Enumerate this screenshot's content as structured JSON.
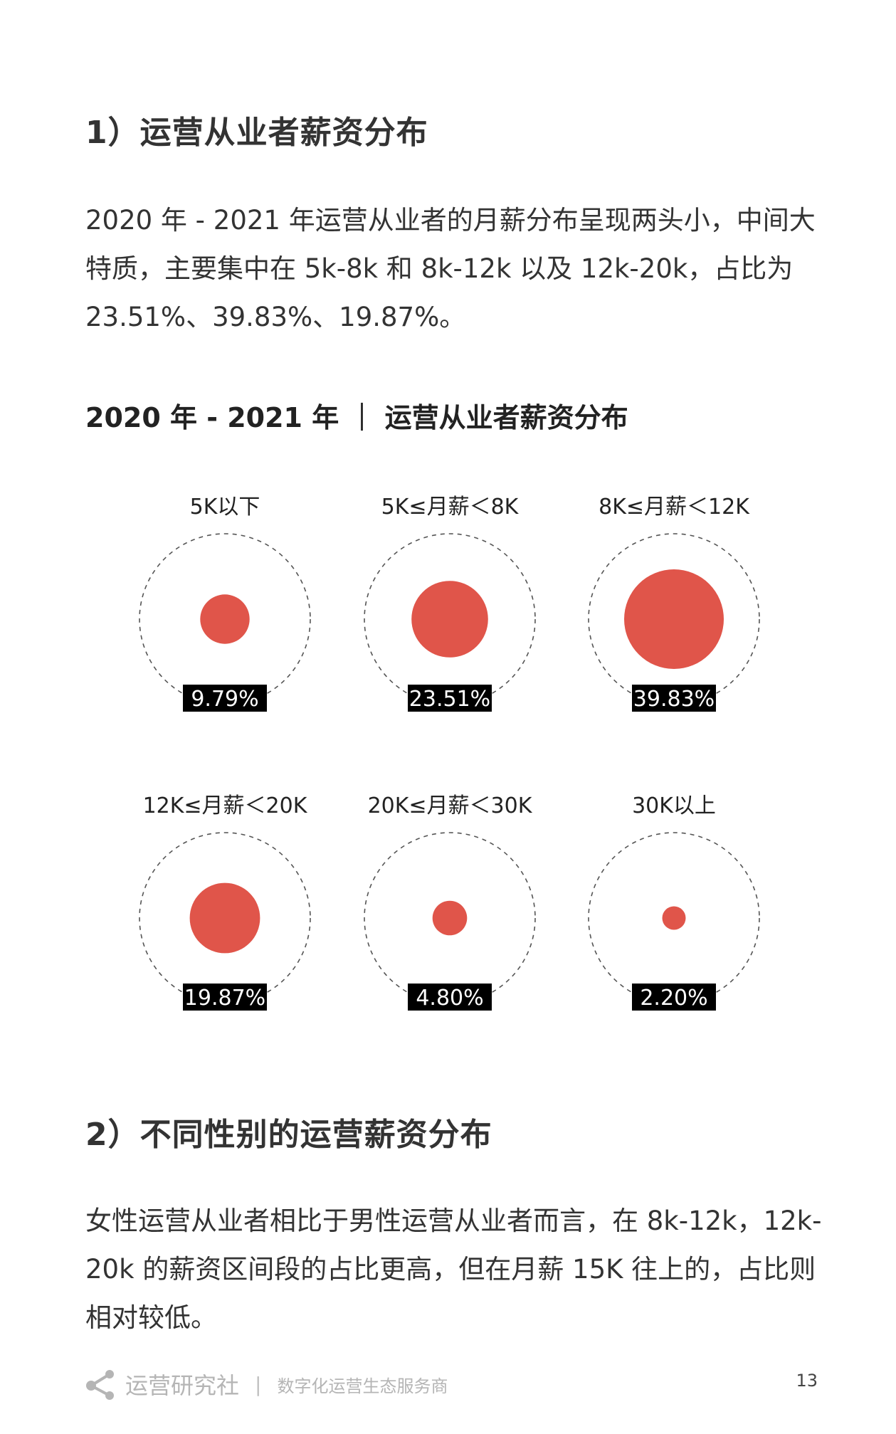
{
  "section1": {
    "heading": "1）运营从业者薪资分布",
    "paragraph": "2020 年 - 2021 年运营从业者的月薪分布呈现两头小，中间大特质，主要集中在 5k-8k 和 8k-12k 以及 12k-20k，占比为 23.51%、39.83%、19.87%。"
  },
  "chart_title": "2020 年 - 2021 年 ｜ 运营从业者薪资分布",
  "chart_data": {
    "type": "bubble",
    "categories": [
      "5K以下",
      "5K≤月薪＜8K",
      "8K≤月薪＜12K",
      "12K≤月薪＜20K",
      "20K≤月薪＜30K",
      "30K以上"
    ],
    "values": [
      9.79,
      23.51,
      39.83,
      19.87,
      4.8,
      2.2
    ],
    "value_labels": [
      "9.79%",
      "23.51%",
      "39.83%",
      "19.87%",
      "4.80%",
      "2.20%"
    ],
    "unit": "%",
    "colors": {
      "bubble": "#e0554a",
      "label_bg": "#000000",
      "label_text": "#ffffff",
      "outline": "#555555"
    }
  },
  "section2": {
    "heading": "2）不同性别的运营薪资分布",
    "paragraph": "女性运营从业者相比于男性运营从业者而言，在 8k-12k，12k-20k 的薪资区间段的占比更高，但在月薪 15K 往上的，占比则相对较低。"
  },
  "footer": {
    "logo_icon": "share-icon",
    "brand": "运营研究社",
    "separator": "|",
    "slogan": "数字化运营生态服务商",
    "page_number": "13"
  }
}
